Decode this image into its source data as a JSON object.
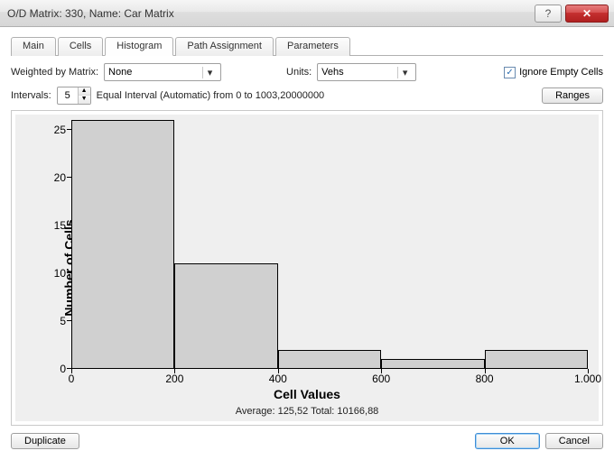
{
  "window": {
    "title": "O/D Matrix: 330, Name: Car Matrix"
  },
  "tabs": {
    "items": [
      "Main",
      "Cells",
      "Histogram",
      "Path Assignment",
      "Parameters"
    ],
    "active_index": 2
  },
  "controls": {
    "weighted_label": "Weighted by Matrix:",
    "weighted_value": "None",
    "units_label": "Units:",
    "units_value": "Vehs",
    "ignore_empty_label": "Ignore Empty Cells",
    "ignore_empty_checked": true,
    "intervals_label": "Intervals:",
    "intervals_value": "5",
    "intervals_desc": "Equal Interval (Automatic) from 0 to 1003,20000000",
    "ranges_button": "Ranges"
  },
  "chart": {
    "type": "histogram",
    "y_label": "Number of Cells",
    "x_label": "Cell Values",
    "stats_text": "Average: 125,52  Total: 10166,88",
    "background_color": "#efefef",
    "bar_fill": "#d0d0d0",
    "bar_stroke": "#000000",
    "axis_color": "#000000",
    "tick_fontsize": 12,
    "label_fontsize": 14,
    "xlim": [
      0,
      1000
    ],
    "xticks": [
      0,
      200,
      400,
      600,
      800,
      1000
    ],
    "xtick_labels": [
      "0",
      "200",
      "400",
      "600",
      "800",
      "1.000"
    ],
    "ylim": [
      0,
      26
    ],
    "yticks": [
      0,
      5,
      10,
      15,
      20,
      25
    ],
    "bars": [
      {
        "x0": 0,
        "x1": 200,
        "value": 26
      },
      {
        "x0": 200,
        "x1": 400,
        "value": 11
      },
      {
        "x0": 400,
        "x1": 600,
        "value": 2
      },
      {
        "x0": 600,
        "x1": 800,
        "value": 1
      },
      {
        "x0": 800,
        "x1": 1000,
        "value": 2
      }
    ]
  },
  "footer": {
    "duplicate": "Duplicate",
    "ok": "OK",
    "cancel": "Cancel"
  }
}
